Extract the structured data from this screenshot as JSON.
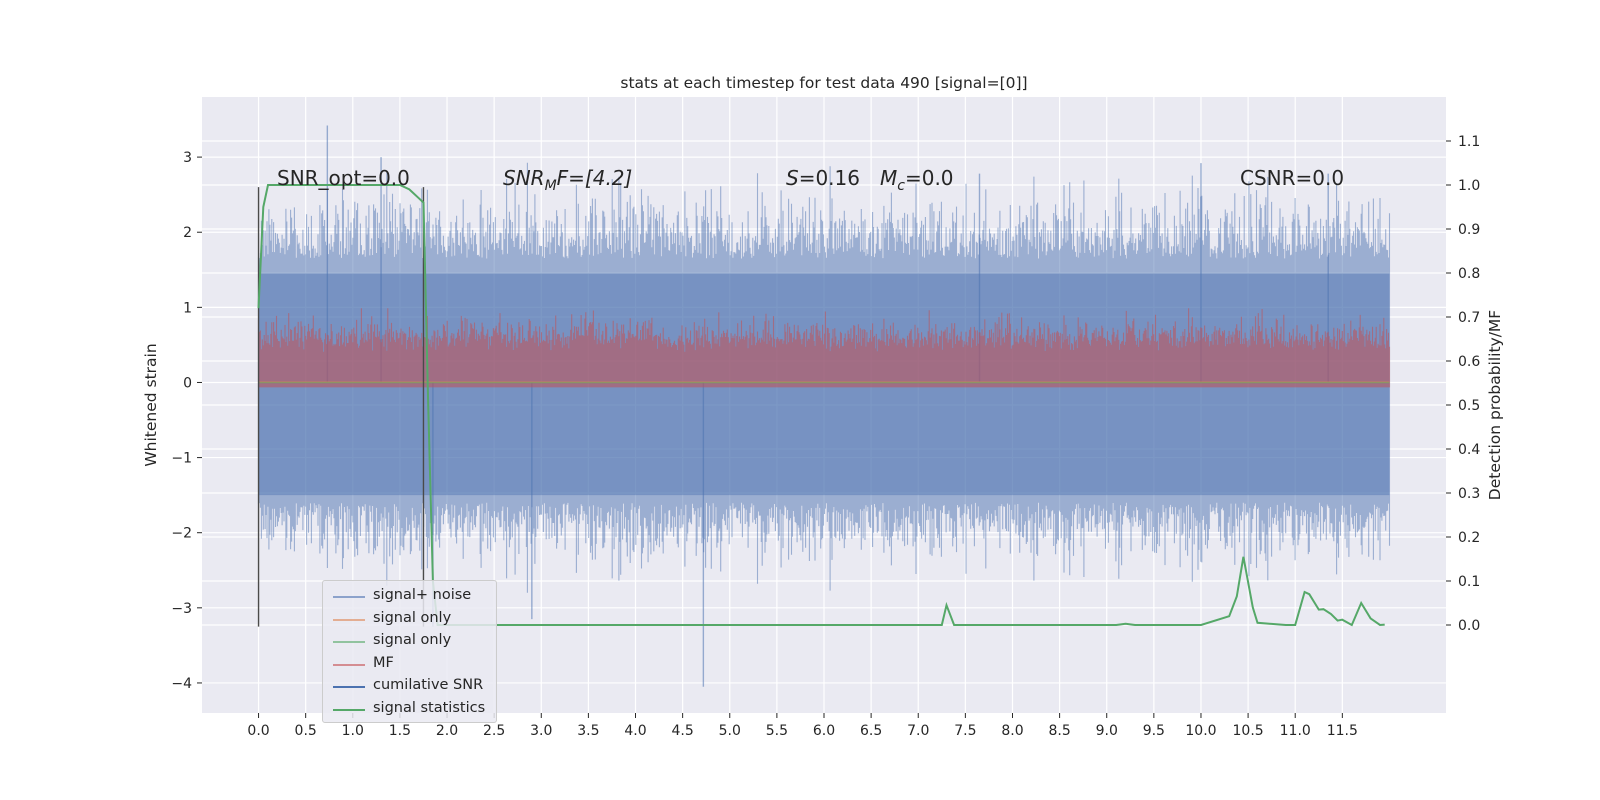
{
  "chart_data": {
    "type": "line",
    "title": "stats at each timestep for test data 490 [signal=[0]]",
    "ylabel": "Whitened strain",
    "y2label": "Detection probability/MF",
    "xlim": [
      -0.6,
      12.6
    ],
    "ylim": [
      -4.4,
      3.8
    ],
    "y2lim": [
      -0.2,
      1.2
    ],
    "x_ticks": [
      "0.0",
      "0.5",
      "1.0",
      "1.5",
      "2.0",
      "2.5",
      "3.0",
      "3.5",
      "4.0",
      "4.5",
      "5.0",
      "5.5",
      "6.0",
      "6.5",
      "7.0",
      "7.5",
      "8.0",
      "8.5",
      "9.0",
      "9.5",
      "10.0",
      "10.5",
      "11.0",
      "11.5"
    ],
    "y_ticks": [
      "3",
      "2",
      "1",
      "0",
      "−1",
      "−2",
      "−3",
      "−4"
    ],
    "y2_ticks": [
      "1.1",
      "1.0",
      "0.9",
      "0.8",
      "0.7",
      "0.6",
      "0.5",
      "0.4",
      "0.3",
      "0.2",
      "0.1",
      "0.0"
    ],
    "grid": true,
    "legend_position": "lower-left",
    "annotations": {
      "snr_opt": "SNR_opt=0.0",
      "snr_mf_main": "SNR",
      "snr_mf_sub": "M",
      "snr_mf_rest": "F=[4.2]",
      "s_label": "S",
      "s_value": "=0.16",
      "mc_label": "M",
      "mc_sub": "c",
      "mc_value": "=0.0",
      "csnr": "CSNR=0.0"
    },
    "series": [
      {
        "name": "signal+ noise",
        "color": "#4c72b0",
        "description_range": [
          -2.6,
          2.9
        ]
      },
      {
        "name": "signal only",
        "color": "#dd8452"
      },
      {
        "name": "signal only",
        "color": "#55a868"
      },
      {
        "name": "MF",
        "color": "#c44e52",
        "range": [
          0.0,
          0.8
        ]
      },
      {
        "name": "cumilative SNR",
        "color": "#4c72b0"
      },
      {
        "name": "signal statistics",
        "color": "#55a868"
      }
    ],
    "markers": {
      "vertical_lines_x": [
        0.0,
        1.75
      ],
      "vertical_lines_y": [
        -3.25,
        2.6
      ]
    },
    "detection_probability": {
      "x": [
        0.0,
        0.05,
        0.1,
        0.2,
        0.4,
        0.6,
        0.8,
        1.0,
        1.2,
        1.4,
        1.5,
        1.6,
        1.7,
        1.75,
        1.8,
        1.85,
        1.9,
        2.0,
        2.5,
        3.0,
        4.0,
        5.0,
        6.0,
        7.0,
        7.25,
        7.3,
        7.38,
        8.0,
        9.0,
        9.1,
        9.2,
        9.3,
        9.4,
        10.0,
        10.3,
        10.38,
        10.45,
        10.55,
        10.6,
        10.9,
        11.0,
        11.1,
        11.15,
        11.25,
        11.3,
        11.38,
        11.45,
        11.5,
        11.6,
        11.7,
        11.8,
        11.9,
        11.95
      ],
      "y": [
        0.72,
        0.95,
        1.0,
        1.0,
        1.0,
        1.0,
        1.0,
        1.0,
        1.0,
        1.0,
        1.0,
        0.99,
        0.97,
        0.96,
        0.5,
        0.1,
        0.0,
        0.0,
        0.0,
        0.0,
        0.0,
        0.0,
        0.0,
        0.0,
        0.0,
        0.045,
        0.0,
        0.0,
        0.0,
        0.0,
        0.003,
        0.0,
        0.0,
        0.0,
        0.02,
        0.065,
        0.155,
        0.04,
        0.005,
        0.0,
        0.0,
        0.075,
        0.07,
        0.035,
        0.036,
        0.025,
        0.01,
        0.012,
        0.0,
        0.05,
        0.015,
        0.0,
        0.001
      ]
    }
  }
}
